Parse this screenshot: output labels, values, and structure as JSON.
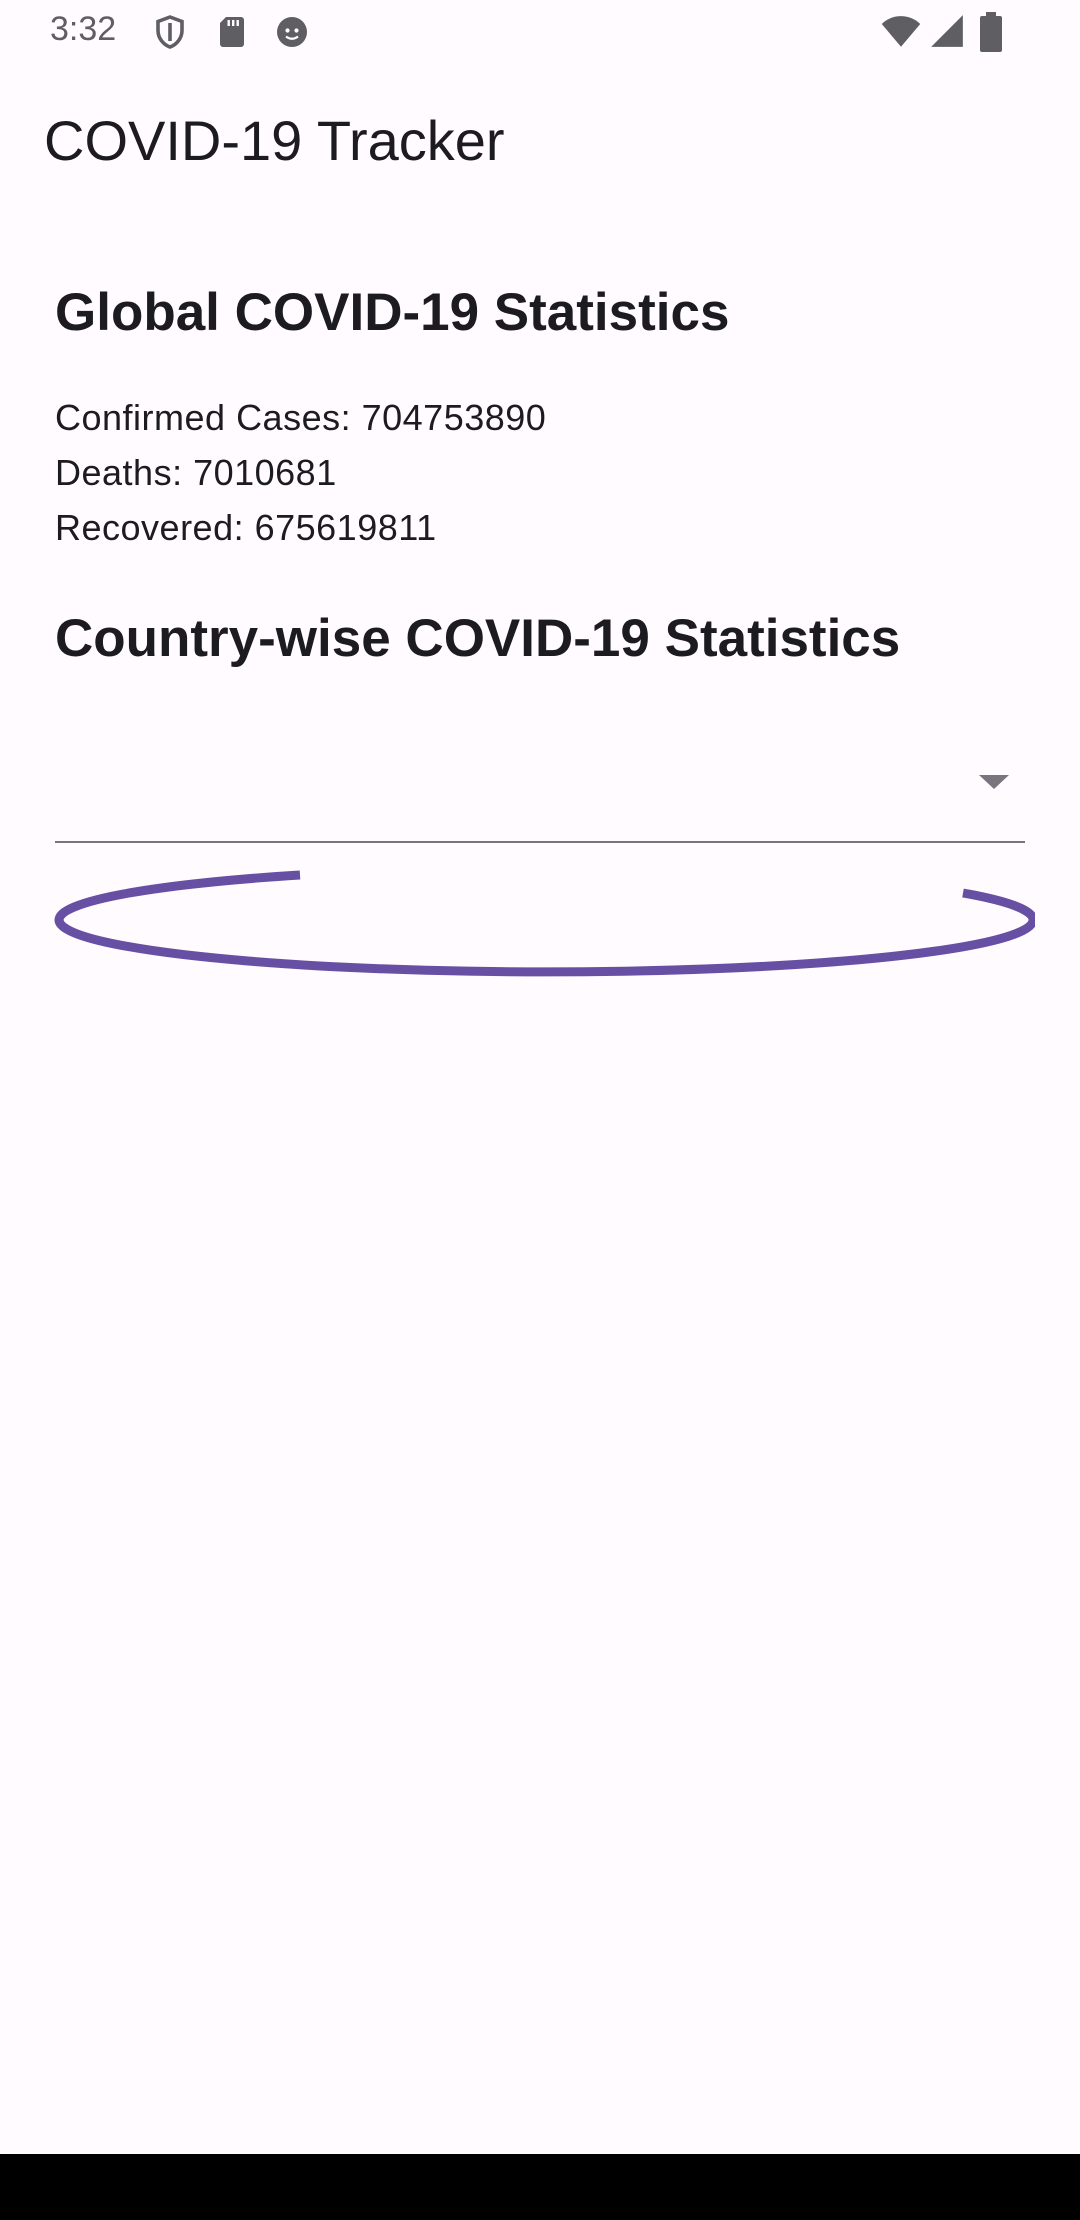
{
  "status_bar": {
    "time": "3:32",
    "left_icons": [
      "shield-icon",
      "sd-card-icon",
      "android-debug-icon"
    ],
    "right_icons": [
      "wifi-icon",
      "cell-signal-icon",
      "battery-icon"
    ]
  },
  "app_bar": {
    "title": "COVID-19 Tracker"
  },
  "global": {
    "title": "Global COVID-19 Statistics",
    "confirmed": "Confirmed Cases: 704753890",
    "deaths": "Deaths: 7010681",
    "recovered": "Recovered: 675619811"
  },
  "country": {
    "title": "Country-wise COVID-19 Statistics",
    "dropdown_value": ""
  },
  "colors": {
    "background": "#fffbfe",
    "accent": "#6750a4",
    "text": "#1c1b1f"
  }
}
